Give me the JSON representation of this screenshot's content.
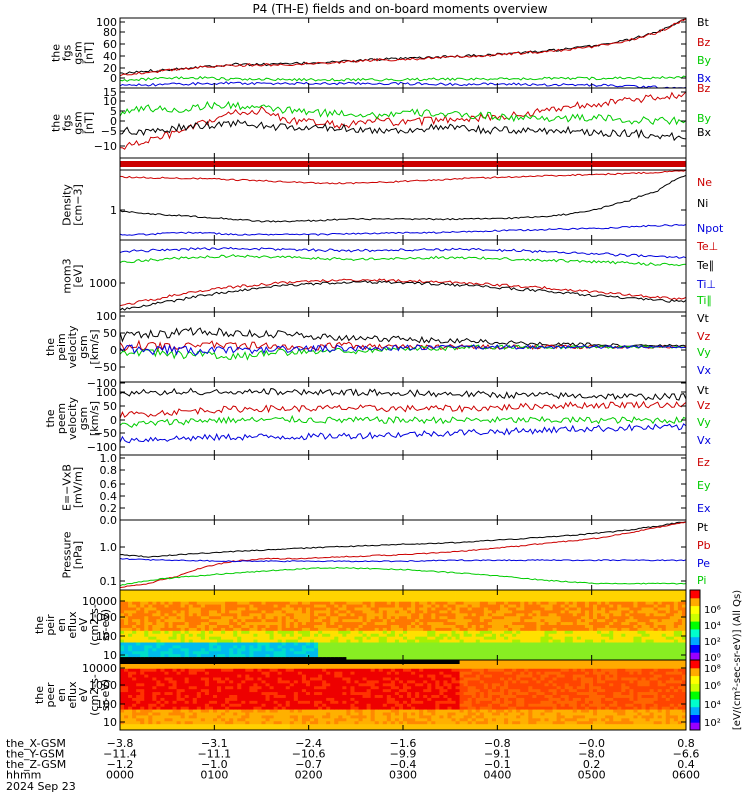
{
  "title": "P4 (TH-E) fields and on-board moments overview",
  "colors": {
    "black": "#000000",
    "red": "#cc0000",
    "green": "#00cc00",
    "blue": "#0000dd"
  },
  "chart_data": [
    {
      "type": "line",
      "ylabel": "the\nfgs\ngsm\n[nT]",
      "ylim": [
        -10,
        100
      ],
      "yticks": [
        "100",
        "80",
        "60",
        "40",
        "20",
        "0"
      ],
      "series": [
        {
          "name": "Bt",
          "color": "black",
          "values": [
            12,
            17,
            20,
            24,
            27,
            27,
            28,
            30,
            32,
            35,
            36,
            38,
            40,
            42,
            45,
            48,
            52,
            58,
            66,
            78,
            100
          ]
        },
        {
          "name": "Bz",
          "color": "red",
          "values": [
            10,
            15,
            19,
            23,
            26,
            26,
            27,
            29,
            31,
            34,
            35,
            37,
            39,
            41,
            44,
            47,
            51,
            57,
            65,
            77,
            99
          ]
        },
        {
          "name": "By",
          "color": "green",
          "values": [
            2,
            4,
            6,
            6,
            4,
            4,
            3,
            3,
            3,
            3,
            3,
            4,
            4,
            4,
            4,
            5,
            5,
            5,
            6,
            6,
            7
          ]
        },
        {
          "name": "Bx",
          "color": "blue",
          "values": [
            -6,
            -5,
            -4,
            -3,
            -2,
            -3,
            -3,
            -3,
            -3,
            -3,
            -3,
            -4,
            -4,
            -4,
            -4,
            -5,
            -5,
            -6,
            -7,
            -9,
            -10
          ]
        }
      ]
    },
    {
      "type": "line",
      "ylabel": "the\nfgs\ngsm\n[nT]",
      "ylim": [
        -12,
        16
      ],
      "yticks": [
        "15",
        "10",
        "5",
        "0",
        "−5",
        "−10"
      ],
      "series": [
        {
          "name": "Bz",
          "color": "red",
          "values": [
            -8,
            -5,
            -2,
            2,
            6,
            7,
            3,
            2,
            1,
            3,
            2,
            3,
            4,
            4,
            5,
            7,
            9,
            10,
            11,
            12,
            14
          ]
        },
        {
          "name": "By",
          "color": "green",
          "values": [
            6,
            8,
            7,
            9,
            9,
            8,
            7,
            6,
            6,
            5,
            6,
            6,
            5,
            5,
            4,
            4,
            4,
            4,
            3,
            3,
            3
          ]
        },
        {
          "name": "Bx",
          "color": "black",
          "values": [
            -1,
            -2,
            0,
            1,
            2,
            1,
            0,
            0,
            0,
            -1,
            -1,
            0,
            0,
            -1,
            -1,
            -1,
            -1,
            -2,
            -2,
            -3,
            -4
          ]
        }
      ]
    },
    {
      "type": "bar",
      "ylabel": "",
      "series": [
        {
          "name": "",
          "color": "red",
          "values": [
            1
          ]
        }
      ]
    },
    {
      "type": "line",
      "ylabel": "Density\n[cm−3]",
      "yscale": "log",
      "ylim": [
        0.15,
        6
      ],
      "yticks": [
        "1"
      ],
      "series": [
        {
          "name": "Ne",
          "color": "red",
          "values": [
            4.2,
            4.0,
            3.9,
            3.8,
            3.6,
            3.4,
            3.2,
            3.0,
            3.0,
            3.1,
            3.3,
            3.5,
            3.8,
            4.0,
            4.2,
            4.4,
            4.6,
            4.8,
            5.0,
            5.3,
            5.8
          ]
        },
        {
          "name": "Ni",
          "color": "black",
          "values": [
            0.7,
            0.6,
            0.55,
            0.5,
            0.45,
            0.4,
            0.4,
            0.42,
            0.45,
            0.45,
            0.45,
            0.45,
            0.45,
            0.46,
            0.48,
            0.52,
            0.6,
            0.8,
            1.2,
            2.0,
            4.5
          ]
        },
        {
          "name": "Npot",
          "color": "blue",
          "values": [
            0.2,
            0.2,
            0.22,
            0.22,
            0.2,
            0.2,
            0.2,
            0.2,
            0.21,
            0.21,
            0.22,
            0.22,
            0.23,
            0.24,
            0.25,
            0.26,
            0.27,
            0.28,
            0.3,
            0.32,
            0.33
          ]
        }
      ]
    },
    {
      "type": "line",
      "ylabel": "mom3\n[eV]",
      "yscale": "log",
      "ylim": [
        400,
        30000
      ],
      "yticks": [
        "1000"
      ],
      "series": [
        {
          "name": "Te⊥",
          "color": "red",
          "values": [
            600,
            800,
            1100,
            1500,
            1800,
            2100,
            2400,
            2600,
            2700,
            2700,
            2600,
            2500,
            2300,
            2100,
            1900,
            1700,
            1500,
            1300,
            1100,
            950,
            900
          ]
        },
        {
          "name": "Te∥",
          "color": "black",
          "values": [
            450,
            600,
            800,
            1100,
            1400,
            1700,
            2000,
            2200,
            2400,
            2400,
            2300,
            2200,
            2000,
            1800,
            1600,
            1400,
            1200,
            1050,
            900,
            800,
            750
          ]
        },
        {
          "name": "Ti⊥",
          "color": "blue",
          "values": [
            15000,
            16000,
            17000,
            18000,
            18000,
            17500,
            17000,
            16500,
            16000,
            16000,
            16500,
            17000,
            17000,
            16500,
            16000,
            15000,
            14000,
            13000,
            12000,
            11000,
            10500
          ]
        },
        {
          "name": "Ti∥",
          "color": "green",
          "values": [
            8000,
            9000,
            10000,
            11000,
            11500,
            11000,
            10500,
            10000,
            9500,
            9500,
            10000,
            10500,
            10500,
            10000,
            9500,
            9000,
            8500,
            8000,
            7500,
            7000,
            6800
          ]
        }
      ]
    },
    {
      "type": "line",
      "ylabel": "the\npeim\nvelocity\ngsm\n[km/s]",
      "ylim": [
        -100,
        100
      ],
      "yticks": [
        "100",
        "50",
        "0",
        "−50",
        "−100"
      ],
      "series": [
        {
          "name": "Vt",
          "color": "black",
          "values": [
            30,
            35,
            40,
            45,
            40,
            38,
            35,
            30,
            28,
            25,
            22,
            20,
            18,
            15,
            12,
            10,
            8,
            6,
            5,
            4,
            4
          ]
        },
        {
          "name": "Vz",
          "color": "red",
          "values": [
            0,
            5,
            -5,
            10,
            0,
            5,
            -5,
            0,
            5,
            0,
            0,
            0,
            0,
            0,
            0,
            0,
            0,
            0,
            0,
            0,
            0
          ]
        },
        {
          "name": "Vy",
          "color": "green",
          "values": [
            -10,
            -15,
            -20,
            -25,
            -30,
            -20,
            -15,
            -10,
            -12,
            -8,
            -5,
            -3,
            -2,
            -1,
            0,
            0,
            0,
            0,
            0,
            0,
            0
          ]
        },
        {
          "name": "Vx",
          "color": "blue",
          "values": [
            -5,
            -8,
            -10,
            -12,
            -10,
            -8,
            -6,
            -5,
            -4,
            -3,
            -2,
            -2,
            -1,
            -1,
            0,
            0,
            0,
            0,
            0,
            0,
            0
          ]
        }
      ]
    },
    {
      "type": "line",
      "ylabel": "the\npeem\nvelocity\ngsm\n[km/s]",
      "ylim": [
        -110,
        110
      ],
      "yticks": [
        "100",
        "50",
        "0",
        "−50",
        "−100"
      ],
      "series": [
        {
          "name": "Vt",
          "color": "black",
          "values": [
            75,
            78,
            80,
            82,
            80,
            80,
            82,
            80,
            78,
            78,
            76,
            75,
            74,
            72,
            70,
            70,
            68,
            68,
            66,
            66,
            65
          ]
        },
        {
          "name": "Vz",
          "color": "red",
          "values": [
            10,
            15,
            20,
            25,
            28,
            30,
            30,
            30,
            32,
            30,
            30,
            30,
            30,
            32,
            35,
            38,
            40,
            40,
            42,
            42,
            40
          ]
        },
        {
          "name": "Vy",
          "color": "green",
          "values": [
            -20,
            -15,
            -10,
            -5,
            -5,
            -5,
            -3,
            -5,
            -5,
            -5,
            -5,
            -5,
            -5,
            -5,
            -5,
            -5,
            -5,
            -5,
            -5,
            -5,
            -5
          ]
        },
        {
          "name": "Vx",
          "color": "blue",
          "values": [
            -65,
            -62,
            -60,
            -58,
            -56,
            -55,
            -55,
            -54,
            -52,
            -50,
            -48,
            -45,
            -42,
            -40,
            -38,
            -35,
            -32,
            -30,
            -28,
            -27,
            -26
          ]
        }
      ]
    },
    {
      "type": "line",
      "ylabel": "E=−VxB\n[mV/m]",
      "ylim": [
        0,
        1
      ],
      "yticks": [
        "1.0",
        "0.8",
        "0.6",
        "0.4",
        "0.2",
        "0.0"
      ],
      "series": [
        {
          "name": "Ez",
          "color": "red",
          "values": []
        },
        {
          "name": "Ey",
          "color": "green",
          "values": []
        },
        {
          "name": "Ex",
          "color": "blue",
          "values": []
        }
      ]
    },
    {
      "type": "line",
      "ylabel": "Pressure\n[nPa]",
      "yscale": "log",
      "ylim": [
        0.07,
        3.5
      ],
      "yticks": [
        "1.0",
        "0.1"
      ],
      "series": [
        {
          "name": "Pt",
          "color": "black",
          "values": [
            0.5,
            0.45,
            0.5,
            0.55,
            0.6,
            0.65,
            0.7,
            0.75,
            0.8,
            0.85,
            0.9,
            0.95,
            1.0,
            1.1,
            1.2,
            1.35,
            1.5,
            1.7,
            2.0,
            2.5,
            3.2
          ]
        },
        {
          "name": "Pb",
          "color": "red",
          "values": [
            0.08,
            0.1,
            0.15,
            0.25,
            0.35,
            0.4,
            0.4,
            0.42,
            0.45,
            0.48,
            0.5,
            0.55,
            0.6,
            0.7,
            0.8,
            0.95,
            1.1,
            1.3,
            1.7,
            2.3,
            3.1
          ]
        },
        {
          "name": "Pe",
          "color": "blue",
          "values": [
            0.4,
            0.38,
            0.37,
            0.36,
            0.35,
            0.35,
            0.35,
            0.35,
            0.35,
            0.35,
            0.35,
            0.36,
            0.37,
            0.37,
            0.37,
            0.37,
            0.37,
            0.37,
            0.37,
            0.37,
            0.37
          ]
        },
        {
          "name": "Pi",
          "color": "green",
          "values": [
            0.09,
            0.12,
            0.14,
            0.16,
            0.18,
            0.2,
            0.22,
            0.24,
            0.24,
            0.23,
            0.22,
            0.2,
            0.18,
            0.16,
            0.14,
            0.12,
            0.11,
            0.1,
            0.1,
            0.1,
            0.1
          ]
        }
      ]
    },
    {
      "type": "heatmap",
      "ylabel": "the\npeir\nen\neflux\neV\n(cm2-s-\nsr-eV)",
      "yscale": "log",
      "ylim": [
        7,
        20000
      ],
      "yticks": [
        "10000",
        "1000",
        "100",
        "10"
      ],
      "colorbar_ticks": [
        "10⁶",
        "10⁴",
        "10²",
        "10⁰"
      ]
    },
    {
      "type": "heatmap",
      "ylabel": "the\npeer\nen\neflux\neV\n(cm2-s-\nsr-eV)",
      "yscale": "log",
      "ylim": [
        7,
        20000
      ],
      "yticks": [
        "10000",
        "1000",
        "100",
        "10"
      ],
      "colorbar_ticks": [
        "10⁸",
        "10⁶",
        "10⁴",
        "10²"
      ],
      "colorbar_label": "[eV/(cm²-sec-sr-eV)] (All Qs)"
    }
  ],
  "xaxis": {
    "rows": [
      {
        "label": "the_X-GSM",
        "values": [
          "−3.8",
          "−3.1",
          "−2.4",
          "−1.6",
          "−0.8",
          "−0.0",
          "0.8"
        ]
      },
      {
        "label": "the_Y-GSM",
        "values": [
          "−11.4",
          "−11.1",
          "−10.6",
          "−9.9",
          "−9.1",
          "−8.0",
          "−6.6"
        ]
      },
      {
        "label": "the_Z-GSM",
        "values": [
          "−1.2",
          "−1.0",
          "−0.7",
          "−0.4",
          "−0.1",
          "0.2",
          "0.4"
        ]
      },
      {
        "label": "hhmm",
        "values": [
          "0000",
          "0100",
          "0200",
          "0300",
          "0400",
          "0500",
          "0600"
        ]
      }
    ],
    "date": "2024 Sep 23"
  }
}
